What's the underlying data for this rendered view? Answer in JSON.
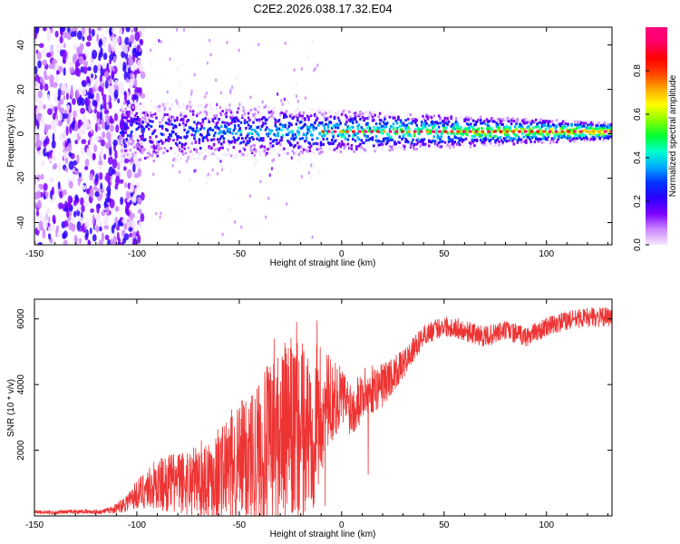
{
  "title": "C2E2.2026.038.17.32.E04",
  "chart_data": [
    {
      "type": "heatmap",
      "title": "C2E2.2026.038.17.32.E04",
      "xlabel": "Height of straight line (km)",
      "ylabel": "Frequency (Hz)",
      "xlim": [
        -150,
        132
      ],
      "ylim": [
        -50,
        48
      ],
      "x_ticks": [
        -150,
        -100,
        -50,
        0,
        50,
        100
      ],
      "y_ticks": [
        -40,
        -20,
        0,
        20,
        40
      ],
      "colorbar": {
        "label": "Normalized spectral amplitude",
        "range": [
          0,
          1
        ],
        "ticks": [
          0.0,
          0.2,
          0.4,
          0.6,
          0.8
        ],
        "colors": [
          "#f4e6ff",
          "#cc88ff",
          "#7a00ff",
          "#2d00ff",
          "#0033ff",
          "#00aaff",
          "#00ffcc",
          "#00ff33",
          "#88ff00",
          "#ffff00",
          "#ffaa00",
          "#ff4400",
          "#ff0000",
          "#ff0066",
          "#ff0080"
        ]
      },
      "features": {
        "noise_region_x": [
          -150,
          -105
        ],
        "band_center_hz": 1,
        "signal_color": "#ff2020"
      }
    },
    {
      "type": "line",
      "xlabel": "Height of straight line (km)",
      "ylabel": "SNR (10 * v/v)",
      "xlim": [
        -150,
        132
      ],
      "ylim": [
        0,
        6600
      ],
      "x_ticks": [
        -150,
        -100,
        -50,
        0,
        50,
        100
      ],
      "y_ticks": [
        2000,
        4000,
        6000
      ],
      "color": "#ee3333",
      "series": [
        {
          "name": "SNR",
          "x": [
            -150,
            -140,
            -130,
            -120,
            -115,
            -110,
            -105,
            -100,
            -95,
            -90,
            -85,
            -80,
            -75,
            -70,
            -65,
            -60,
            -55,
            -50,
            -45,
            -40,
            -35,
            -30,
            -25,
            -20,
            -15,
            -10,
            -5,
            0,
            5,
            10,
            15,
            20,
            25,
            30,
            40,
            50,
            60,
            70,
            80,
            90,
            100,
            110,
            120,
            132
          ],
          "y": [
            120,
            100,
            130,
            120,
            150,
            230,
            420,
            650,
            850,
            950,
            1000,
            1000,
            1050,
            1100,
            1200,
            1300,
            1450,
            1600,
            1800,
            2000,
            2200,
            2450,
            2550,
            2400,
            2700,
            3100,
            3500,
            3650,
            3300,
            3700,
            3850,
            4000,
            4300,
            4600,
            5500,
            5800,
            5650,
            5450,
            5650,
            5450,
            5750,
            5950,
            6050,
            6050
          ],
          "noise_amplitude": [
            60,
            60,
            60,
            70,
            80,
            150,
            300,
            450,
            650,
            800,
            900,
            950,
            1050,
            1150,
            1300,
            1500,
            1700,
            1900,
            2100,
            2300,
            2500,
            2700,
            2900,
            2900,
            2700,
            2100,
            1300,
            900,
            900,
            800,
            750,
            700,
            550,
            450,
            320,
            320,
            320,
            320,
            320,
            300,
            300,
            300,
            300,
            300
          ],
          "spikes": [
            {
              "x": -33,
              "y": 5400
            },
            {
              "x": -22,
              "y": 5900
            },
            {
              "x": -12,
              "y": 5950
            },
            {
              "x": -8,
              "y": 300
            },
            {
              "x": 13,
              "y": 1250
            }
          ]
        }
      ]
    }
  ]
}
